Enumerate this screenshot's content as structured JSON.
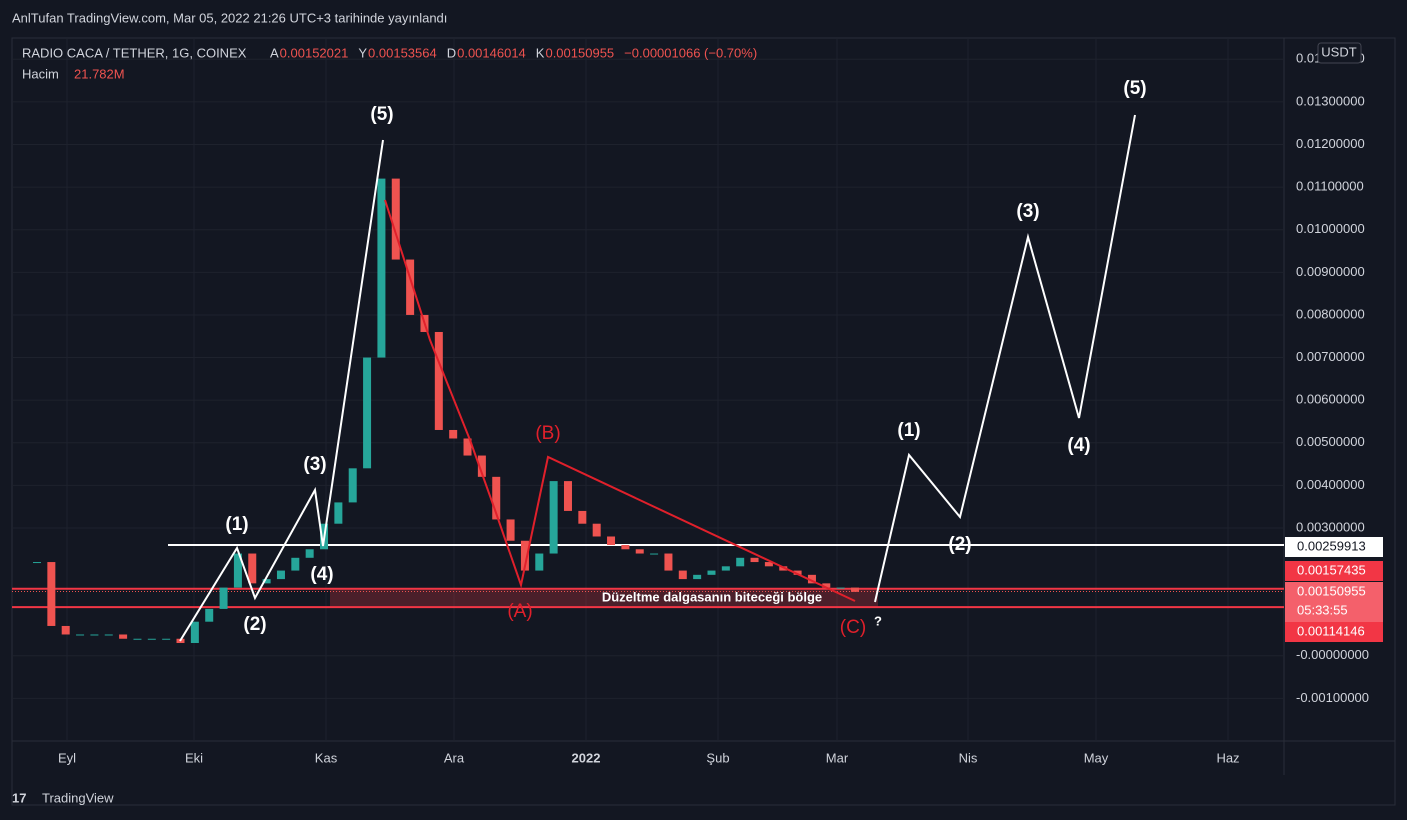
{
  "publish_bar": {
    "text": "AnlTufan TradingView.com, Mar 05, 2022 21:26 UTC+3 tarihinde yayınlandı"
  },
  "legend": {
    "symbol": "RADIO CACA / TETHER, 1G, COINEX",
    "ohlc": [
      {
        "label": "A",
        "value": 0.00152021
      },
      {
        "label": "Y",
        "value": 0.00153564
      },
      {
        "label": "D",
        "value": 0.00146014
      },
      {
        "label": "K",
        "value": 0.00150955
      }
    ],
    "change": "−0.00001066 (−0.70%)",
    "volume_label": "Hacim",
    "volume_value": "21.782M"
  },
  "currency_button": "USDT",
  "chart_data": {
    "type": "candlestick",
    "closes": [
      0.0022,
      0.0007,
      0.0005,
      0.0005,
      0.0005,
      0.0005,
      0.0004,
      0.0004,
      0.0004,
      0.0004,
      0.0003,
      0.0008,
      0.0011,
      0.0016,
      0.0024,
      0.0017,
      0.0018,
      0.002,
      0.0023,
      0.0025,
      0.0031,
      0.0036,
      0.0044,
      0.007,
      0.0112,
      0.0093,
      0.008,
      0.0076,
      0.0053,
      0.0051,
      0.0047,
      0.0042,
      0.0032,
      0.0027,
      0.002,
      0.0024,
      0.0041,
      0.0034,
      0.0031,
      0.0028,
      0.0026,
      0.0025,
      0.0024,
      0.0024,
      0.002,
      0.0018,
      0.0019,
      0.002,
      0.0021,
      0.0023,
      0.0022,
      0.0021,
      0.002,
      0.0019,
      0.0017,
      0.0016,
      0.0016,
      0.0015
    ],
    "ylim": [
      -0.002,
      0.0145
    ],
    "yticks": [
      {
        "value": 0.014,
        "label": "0.01400000"
      },
      {
        "value": 0.013,
        "label": "0.01300000"
      },
      {
        "value": 0.012,
        "label": "0.01200000"
      },
      {
        "value": 0.011,
        "label": "0.01100000"
      },
      {
        "value": 0.01,
        "label": "0.01000000"
      },
      {
        "value": 0.009,
        "label": "0.00900000"
      },
      {
        "value": 0.008,
        "label": "0.00800000"
      },
      {
        "value": 0.007,
        "label": "0.00700000"
      },
      {
        "value": 0.006,
        "label": "0.00600000"
      },
      {
        "value": 0.005,
        "label": "0.00500000"
      },
      {
        "value": 0.004,
        "label": "0.00400000"
      },
      {
        "value": 0.003,
        "label": "0.00300000"
      },
      {
        "value": 0,
        "label": "-0.00000000"
      },
      {
        "value": -0.001,
        "label": "-0.00100000"
      }
    ],
    "time_labels": [
      "Eyl",
      "Eki",
      "Kas",
      "Ara",
      "2022",
      "Şub",
      "Mar",
      "Nis",
      "May",
      "Haz"
    ],
    "levels": {
      "white": 0.00259913,
      "red_top": 0.00157435,
      "red_bottom": 0.00114146
    },
    "last_price": 0.00150955,
    "countdown": "05:33:55",
    "up_color": "#26a69a",
    "down_color": "#ef5350",
    "zone_text": "Düzeltme dalgasanın biteceği bölge",
    "wave_labels_left": [
      "(1)",
      "(2)",
      "(3)",
      "(4)",
      "(5)"
    ],
    "correction_labels": [
      "(A)",
      "(B)",
      "(C)"
    ],
    "question": "?",
    "wave_labels_right": [
      "(1)",
      "(2)",
      "(3)",
      "(4)",
      "(5)"
    ]
  },
  "footer": {
    "brand": "TradingView"
  }
}
